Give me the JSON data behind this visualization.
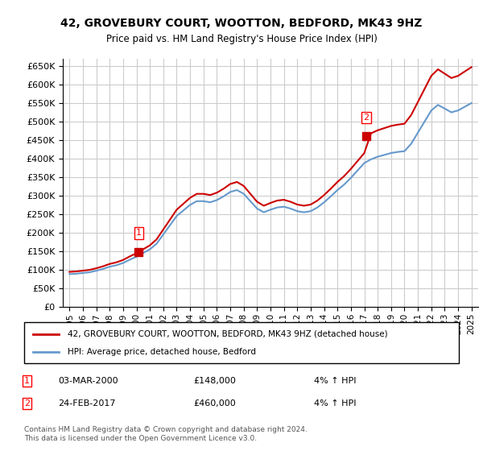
{
  "title": "42, GROVEBURY COURT, WOOTTON, BEDFORD, MK43 9HZ",
  "subtitle": "Price paid vs. HM Land Registry's House Price Index (HPI)",
  "property_label": "42, GROVEBURY COURT, WOOTTON, BEDFORD, MK43 9HZ (detached house)",
  "hpi_label": "HPI: Average price, detached house, Bedford",
  "sale1_label": "1",
  "sale1_date": "03-MAR-2000",
  "sale1_price": "£148,000",
  "sale1_hpi": "4% ↑ HPI",
  "sale2_label": "2",
  "sale2_date": "24-FEB-2017",
  "sale2_price": "£460,000",
  "sale2_hpi": "4% ↑ HPI",
  "copyright": "Contains HM Land Registry data © Crown copyright and database right 2024.\nThis data is licensed under the Open Government Licence v3.0.",
  "property_color": "#cc0000",
  "hpi_color": "#6699cc",
  "marker1_color": "#cc0000",
  "marker2_color": "#cc0000",
  "ylim": [
    0,
    670000
  ],
  "yticks": [
    0,
    50000,
    100000,
    150000,
    200000,
    250000,
    300000,
    350000,
    400000,
    450000,
    500000,
    550000,
    600000,
    650000
  ],
  "background_color": "#ffffff",
  "grid_color": "#cccccc"
}
